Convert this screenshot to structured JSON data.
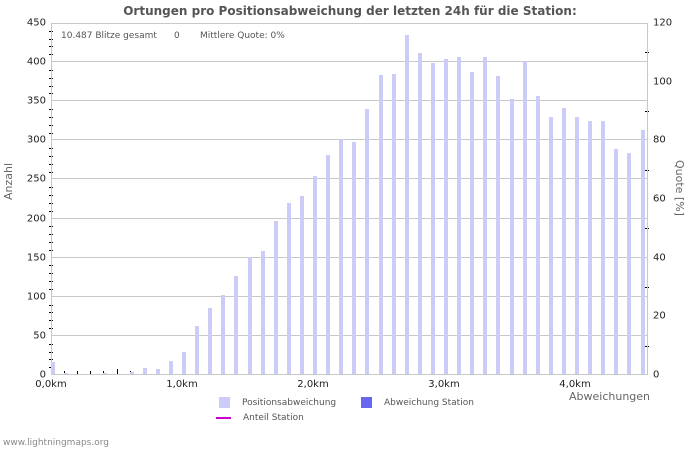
{
  "title": "Ortungen pro Positionsabweichung der letzten 24h für die Station:",
  "info": {
    "total": "10.487 Blitze gesamt",
    "station_count": "0",
    "quote": "Mittlere Quote: 0%"
  },
  "axes": {
    "left_label": "Anzahl",
    "right_label": "Quote [%]",
    "x_label": "Abweichungen",
    "left_ticks": [
      "0",
      "50",
      "100",
      "150",
      "200",
      "250",
      "300",
      "350",
      "400",
      "450"
    ],
    "right_ticks": [
      "0",
      "20",
      "40",
      "60",
      "80",
      "100",
      "120"
    ],
    "x_ticks": [
      "0,0km",
      "1,0km",
      "2,0km",
      "3,0km",
      "4,0km"
    ]
  },
  "legend": {
    "positionsabweichung": "Positionsabweichung",
    "abweichung_station": "Abweichung Station",
    "anteil_station": "Anteil Station"
  },
  "colors": {
    "positionsabweichung": "#ccccf8",
    "abweichung_station": "#6666f0",
    "anteil_station": "#cc00cc"
  },
  "footer": "www.lightningmaps.org",
  "chart_data": {
    "type": "bar",
    "title": "Ortungen pro Positionsabweichung der letzten 24h für die Station:",
    "xlabel": "Abweichungen",
    "ylabel": "Anzahl",
    "y2label": "Quote [%]",
    "ylim": [
      0,
      450
    ],
    "y2lim": [
      0,
      120
    ],
    "x_unit": "km",
    "bin_width_km": 0.1,
    "categories": [
      "0.0",
      "0.1",
      "0.2",
      "0.3",
      "0.4",
      "0.5",
      "0.6",
      "0.7",
      "0.8",
      "0.9",
      "1.0",
      "1.1",
      "1.2",
      "1.3",
      "1.4",
      "1.5",
      "1.6",
      "1.7",
      "1.8",
      "1.9",
      "2.0",
      "2.1",
      "2.2",
      "2.3",
      "2.4",
      "2.5",
      "2.6",
      "2.7",
      "2.8",
      "2.9",
      "3.0",
      "3.1",
      "3.2",
      "3.3",
      "3.4",
      "3.5",
      "3.6",
      "3.7",
      "3.8",
      "3.9",
      "4.0",
      "4.1",
      "4.2",
      "4.3",
      "4.4",
      "4.5"
    ],
    "series": [
      {
        "name": "Positionsabweichung",
        "values": [
          16,
          1,
          0,
          0,
          1,
          0,
          3,
          8,
          6,
          17,
          28,
          61,
          85,
          101,
          125,
          149,
          157,
          195,
          218,
          228,
          253,
          280,
          301,
          297,
          339,
          382,
          384,
          434,
          410,
          398,
          403,
          405,
          386,
          405,
          381,
          352,
          400,
          355,
          329,
          340,
          329,
          323,
          323,
          288,
          283,
          312
        ]
      },
      {
        "name": "Abweichung Station",
        "values": [
          0,
          0,
          0,
          0,
          0,
          0,
          0,
          0,
          0,
          0,
          0,
          0,
          0,
          0,
          0,
          0,
          0,
          0,
          0,
          0,
          0,
          0,
          0,
          0,
          0,
          0,
          0,
          0,
          0,
          0,
          0,
          0,
          0,
          0,
          0,
          0,
          0,
          0,
          0,
          0,
          0,
          0,
          0,
          0,
          0,
          0
        ]
      },
      {
        "name": "Anteil Station",
        "axis": "right",
        "values": []
      }
    ],
    "grid": true,
    "legend_position": "bottom"
  }
}
